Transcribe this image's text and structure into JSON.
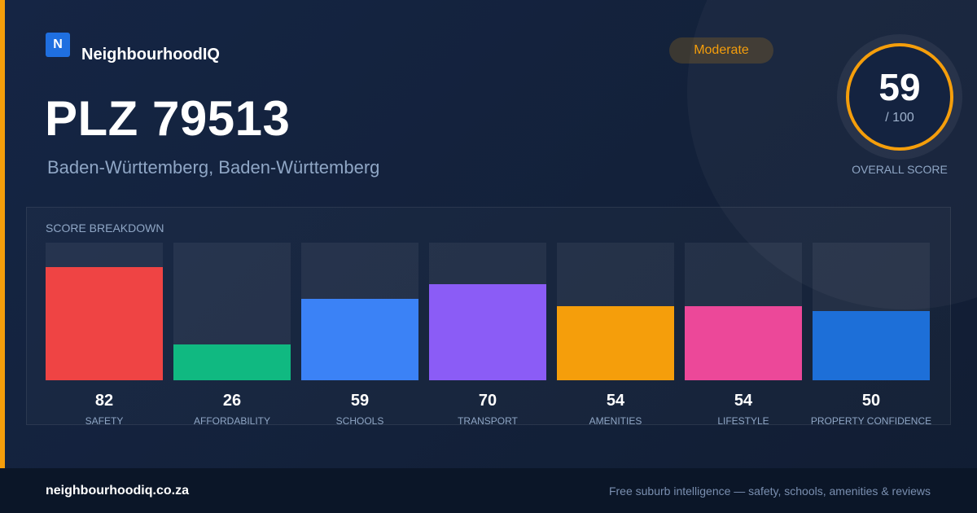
{
  "brand": {
    "logo_letter": "N",
    "name": "NeighbourhoodIQ",
    "logo_color": "#1f6fe0"
  },
  "header": {
    "title": "PLZ 79513",
    "subtitle": "Baden-Württemberg, Baden-Württemberg"
  },
  "rating_badge": {
    "label": "Moderate",
    "color": "#f59e0b"
  },
  "overall_score": {
    "value": "59",
    "max": "/ 100",
    "label": "OVERALL SCORE",
    "ring_color": "#f59e0b"
  },
  "colors": {
    "accent_bar": "#f59e0b"
  },
  "breakdown": {
    "title": "SCORE BREAKDOWN",
    "scale_max": 100
  },
  "chart_data": {
    "type": "bar",
    "categories": [
      "SAFETY",
      "AFFORDABILITY",
      "SCHOOLS",
      "TRANSPORT",
      "AMENITIES",
      "LIFESTYLE",
      "PROPERTY CONFIDENCE"
    ],
    "values": [
      82,
      26,
      59,
      70,
      54,
      54,
      50
    ],
    "colors": [
      "#ef4444",
      "#10b981",
      "#3b82f6",
      "#8b5cf6",
      "#f59e0b",
      "#ec4899",
      "#1d6fd8"
    ],
    "title": "SCORE BREAKDOWN",
    "ylim": [
      0,
      100
    ]
  },
  "footer": {
    "domain": "neighbourhoodiq.co.za",
    "tagline": "Free suburb intelligence — safety, schools, amenities & reviews"
  }
}
